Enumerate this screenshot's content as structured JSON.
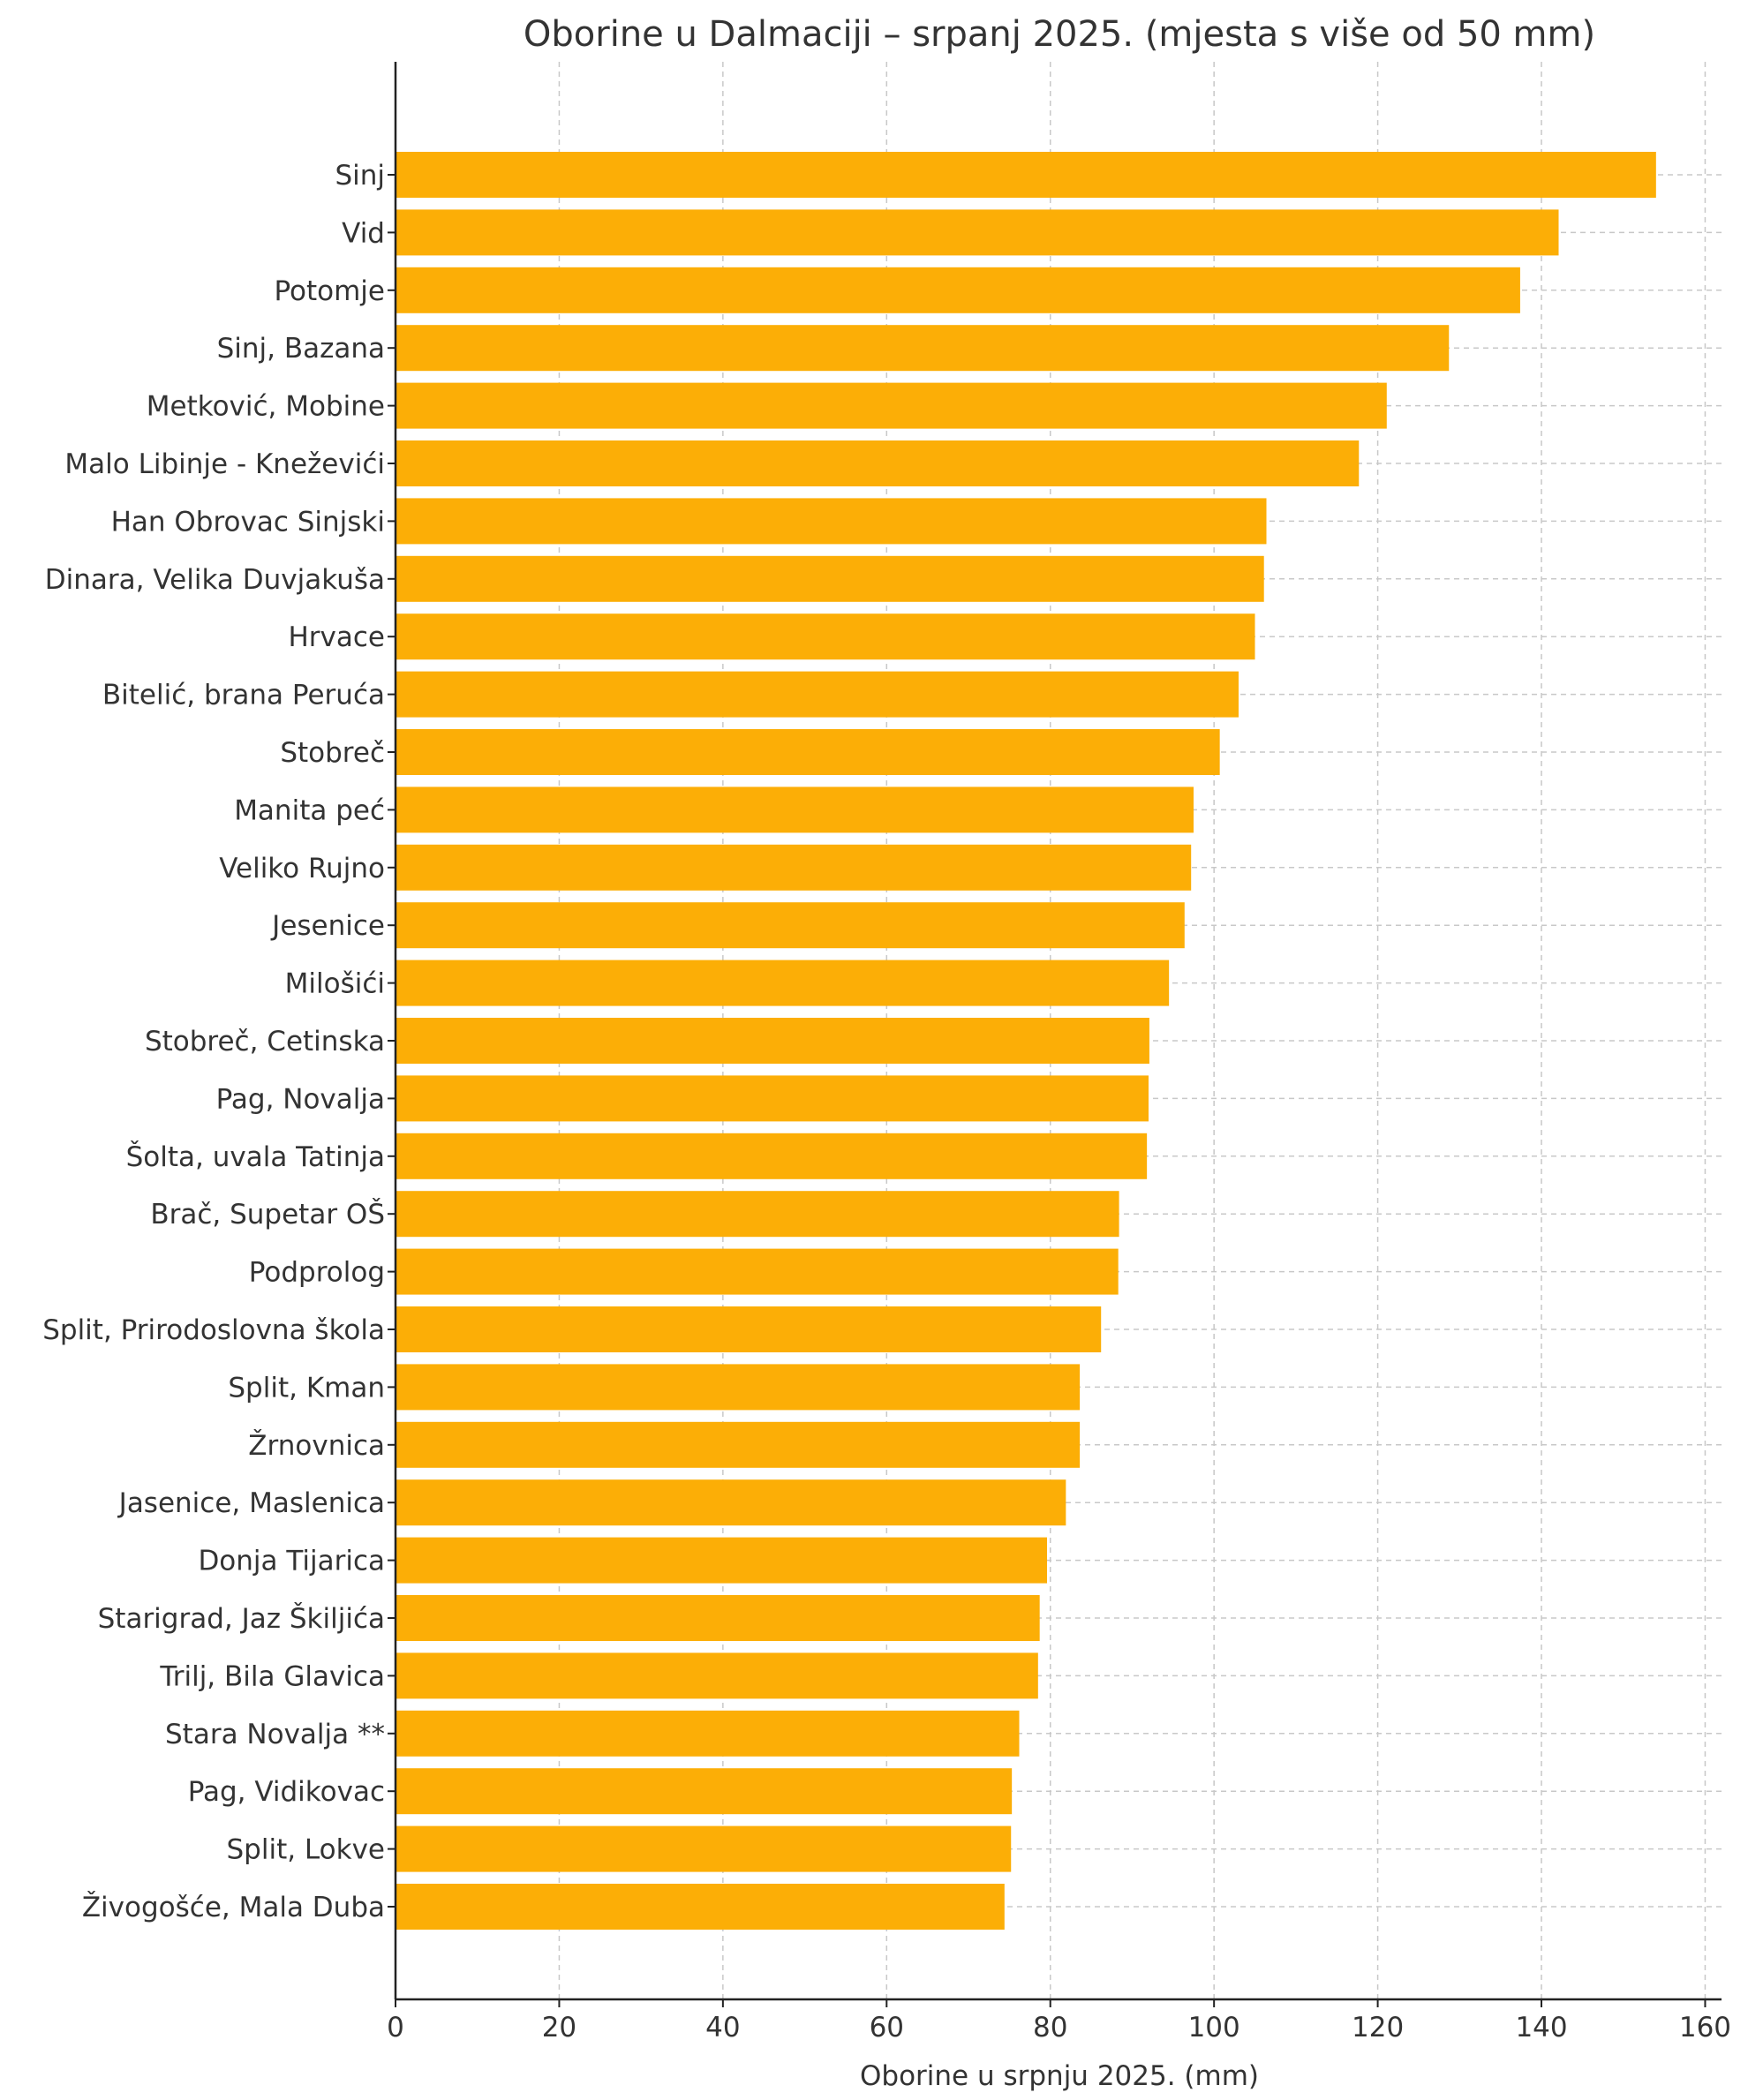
{
  "chart_data": {
    "type": "bar",
    "orientation": "horizontal",
    "title": "Oborine u Dalmaciji – srpanj 2025. (mjesta s više od 50 mm)",
    "xlabel": "Oborine u srpnju 2025. (mm)",
    "ylabel": "",
    "xlim": [
      0,
      162
    ],
    "xticks": [
      "0",
      "20",
      "40",
      "60",
      "80",
      "100",
      "120",
      "140",
      "160"
    ],
    "xtick_values": [
      0,
      20,
      40,
      60,
      80,
      100,
      120,
      140,
      160
    ],
    "grid": true,
    "bar_color": "#FCAE06",
    "categories": [
      "Sinj",
      "Vid",
      "Potomje",
      "Sinj, Bazana",
      "Metković, Mobine",
      "Malo Libinje - Kneževići",
      "Han Obrovac Sinjski",
      "Dinara, Velika Duvjakuša",
      "Hrvace",
      "Bitelić, brana Peruća",
      "Stobreč",
      "Manita peć",
      "Veliko Rujno",
      "Jesenice",
      "Milošići",
      "Stobreč, Cetinska",
      "Pag, Novalja",
      "Šolta, uvala Tatinja",
      "Brač, Supetar OŠ",
      "Podprolog",
      "Split, Prirodoslovna škola",
      "Split, Kman",
      "Žrnovnica",
      "Jasenice, Maslenica",
      "Donja Tijarica",
      "Starigrad, Jaz Škiljića",
      "Trilj, Bila Glavica",
      "Stara Novalja **",
      "Pag, Vidikovac",
      "Split, Lokve",
      "Živogošće, Mala Duba"
    ],
    "values": [
      154.0,
      142.1,
      137.4,
      128.7,
      121.1,
      117.7,
      106.4,
      106.1,
      105.0,
      103.0,
      100.7,
      97.5,
      97.2,
      96.4,
      94.5,
      92.1,
      92.0,
      91.8,
      88.4,
      88.3,
      86.2,
      83.6,
      83.6,
      81.9,
      79.6,
      78.7,
      78.5,
      76.2,
      75.3,
      75.2,
      74.4
    ]
  }
}
